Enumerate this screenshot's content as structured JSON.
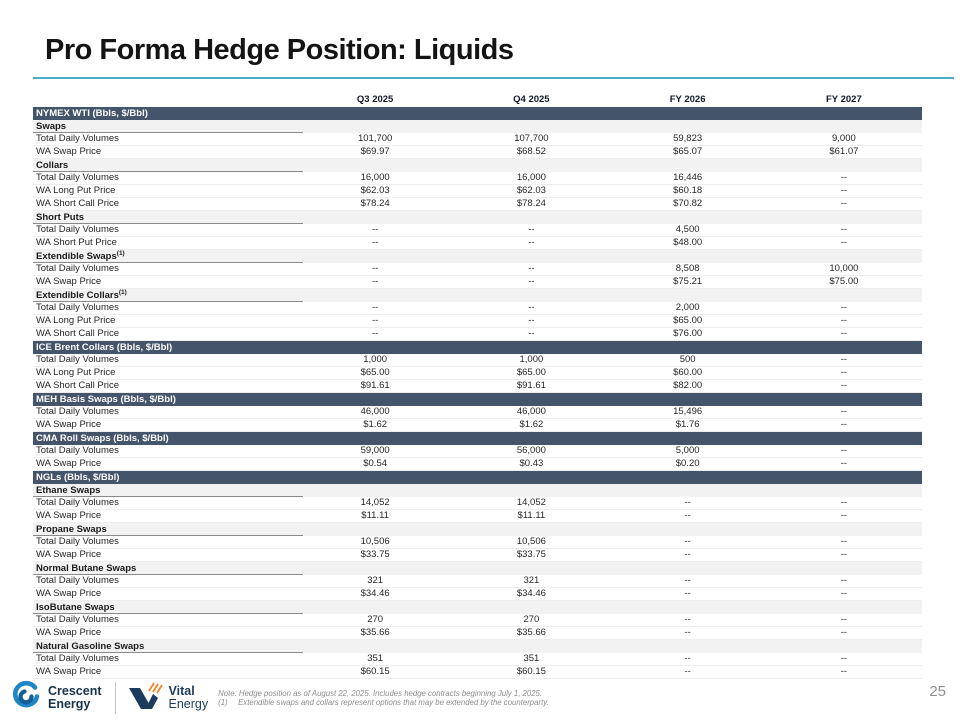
{
  "slide": {
    "title": "Pro Forma Hedge Position: Liquids",
    "page_number": "25"
  },
  "colors": {
    "accent_line": "#4BACC6",
    "section_bar": "#44546A",
    "subsection_bg": "#F2F2F2",
    "crescent_blue": "#1E86C8",
    "vital_navy": "#1B3A5C",
    "vital_orange": "#F58220"
  },
  "table": {
    "columns": [
      "Q3 2025",
      "Q4 2025",
      "FY 2026",
      "FY 2027"
    ],
    "rows": [
      {
        "type": "section",
        "label": "NYMEX WTI (Bbls, $/Bbl)"
      },
      {
        "type": "subsection",
        "label": "Swaps"
      },
      {
        "type": "data",
        "label": "Total Daily Volumes",
        "values": [
          "101,700",
          "107,700",
          "59,823",
          "9,000"
        ]
      },
      {
        "type": "data",
        "label": "WA Swap Price",
        "values": [
          "$69.97",
          "$68.52",
          "$65.07",
          "$61.07"
        ]
      },
      {
        "type": "subsection",
        "label": "Collars"
      },
      {
        "type": "data",
        "label": "Total Daily Volumes",
        "values": [
          "16,000",
          "16,000",
          "16,446",
          "--"
        ]
      },
      {
        "type": "data",
        "label": "WA Long Put Price",
        "values": [
          "$62.03",
          "$62.03",
          "$60.18",
          "--"
        ]
      },
      {
        "type": "data",
        "label": "WA Short Call Price",
        "values": [
          "$78.24",
          "$78.24",
          "$70.82",
          "--"
        ]
      },
      {
        "type": "subsection",
        "label": "Short Puts"
      },
      {
        "type": "data",
        "label": "Total Daily Volumes",
        "values": [
          "--",
          "--",
          "4,500",
          "--"
        ]
      },
      {
        "type": "data",
        "label": "WA Short Put Price",
        "values": [
          "--",
          "--",
          "$48.00",
          "--"
        ]
      },
      {
        "type": "subsection",
        "label": "Extendible Swaps",
        "sup": "(1)"
      },
      {
        "type": "data",
        "label": "Total Daily Volumes",
        "values": [
          "--",
          "--",
          "8,508",
          "10,000"
        ]
      },
      {
        "type": "data",
        "label": "WA Swap Price",
        "values": [
          "--",
          "--",
          "$75.21",
          "$75.00"
        ]
      },
      {
        "type": "subsection",
        "label": "Extendible Collars",
        "sup": "(1)"
      },
      {
        "type": "data",
        "label": "Total Daily Volumes",
        "values": [
          "--",
          "--",
          "2,000",
          "--"
        ]
      },
      {
        "type": "data",
        "label": "WA Long Put Price",
        "values": [
          "--",
          "--",
          "$65.00",
          "--"
        ]
      },
      {
        "type": "data",
        "label": "WA Short Call Price",
        "values": [
          "--",
          "--",
          "$76.00",
          "--"
        ]
      },
      {
        "type": "section",
        "label": "ICE Brent Collars (Bbls, $/Bbl)"
      },
      {
        "type": "data",
        "label": "Total Daily Volumes",
        "values": [
          "1,000",
          "1,000",
          "500",
          "--"
        ]
      },
      {
        "type": "data",
        "label": "WA Long Put Price",
        "values": [
          "$65.00",
          "$65.00",
          "$60.00",
          "--"
        ]
      },
      {
        "type": "data",
        "label": "WA Short Call Price",
        "values": [
          "$91.61",
          "$91.61",
          "$82.00",
          "--"
        ]
      },
      {
        "type": "section",
        "label": "MEH Basis Swaps (Bbls, $/Bbl)"
      },
      {
        "type": "data",
        "label": "Total Daily Volumes",
        "values": [
          "46,000",
          "46,000",
          "15,496",
          "--"
        ]
      },
      {
        "type": "data",
        "label": "WA Swap Price",
        "values": [
          "$1.62",
          "$1.62",
          "$1.76",
          "--"
        ]
      },
      {
        "type": "section",
        "label": "CMA Roll Swaps (Bbls, $/Bbl)"
      },
      {
        "type": "data",
        "label": "Total Daily Volumes",
        "values": [
          "59,000",
          "56,000",
          "5,000",
          "--"
        ]
      },
      {
        "type": "data",
        "label": "WA Swap Price",
        "values": [
          "$0.54",
          "$0.43",
          "$0.20",
          "--"
        ]
      },
      {
        "type": "section",
        "label": "NGLs (Bbls, $/Bbl)"
      },
      {
        "type": "subsection",
        "label": "Ethane Swaps"
      },
      {
        "type": "data",
        "label": "Total Daily Volumes",
        "values": [
          "14,052",
          "14,052",
          "--",
          "--"
        ]
      },
      {
        "type": "data",
        "label": "WA Swap Price",
        "values": [
          "$11.11",
          "$11.11",
          "--",
          "--"
        ]
      },
      {
        "type": "subsection",
        "label": "Propane Swaps"
      },
      {
        "type": "data",
        "label": "Total Daily Volumes",
        "values": [
          "10,506",
          "10,506",
          "--",
          "--"
        ]
      },
      {
        "type": "data",
        "label": "WA Swap Price",
        "values": [
          "$33.75",
          "$33.75",
          "--",
          "--"
        ]
      },
      {
        "type": "subsection",
        "label": "Normal Butane Swaps"
      },
      {
        "type": "data",
        "label": "Total Daily Volumes",
        "values": [
          "321",
          "321",
          "--",
          "--"
        ]
      },
      {
        "type": "data",
        "label": "WA Swap Price",
        "values": [
          "$34.46",
          "$34.46",
          "--",
          "--"
        ]
      },
      {
        "type": "subsection",
        "label": "IsoButane Swaps"
      },
      {
        "type": "data",
        "label": "Total Daily Volumes",
        "values": [
          "270",
          "270",
          "--",
          "--"
        ]
      },
      {
        "type": "data",
        "label": "WA Swap Price",
        "values": [
          "$35.66",
          "$35.66",
          "--",
          "--"
        ]
      },
      {
        "type": "subsection",
        "label": "Natural Gasoline Swaps"
      },
      {
        "type": "data",
        "label": "Total Daily Volumes",
        "values": [
          "351",
          "351",
          "--",
          "--"
        ]
      },
      {
        "type": "data",
        "label": "WA Swap Price",
        "values": [
          "$60.15",
          "$60.15",
          "--",
          "--"
        ]
      }
    ]
  },
  "footer": {
    "crescent_line1": "Crescent",
    "crescent_line2": "Energy",
    "vital_line1": "Vital",
    "vital_line2": "Energy",
    "note_line1": "Note: Hedge position as of August 22, 2025. Includes hedge contracts beginning July 1, 2025.",
    "note2_marker": "(1)",
    "note2_text": "Extendible swaps and collars represent options that may be extended by the counterparty."
  }
}
